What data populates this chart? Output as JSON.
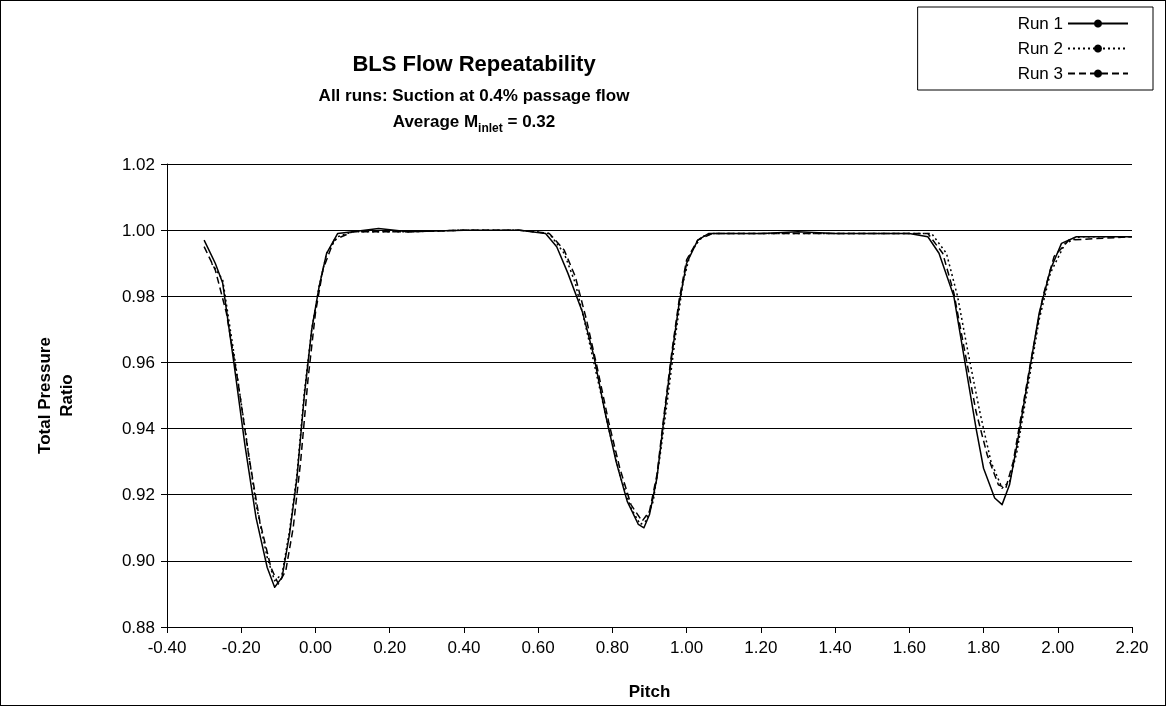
{
  "chart_data": {
    "type": "line",
    "title": "BLS Flow Repeatability",
    "subtitle": "All runs: Suction at 0.4% passage flow\nAverage M$_{inlet}$ = 0.32",
    "xlabel": "Pitch",
    "ylabel": "Total Pressure\nRatio",
    "xlim": [
      -0.4,
      2.2
    ],
    "xticks": [
      {
        "value": -0.4,
        "label": "-0.40"
      },
      {
        "value": -0.2,
        "label": "-0.20"
      },
      {
        "value": 0,
        "label": "0.00"
      },
      {
        "value": 0.2,
        "label": "0.20"
      },
      {
        "value": 0.4,
        "label": "0.40"
      },
      {
        "value": 0.6,
        "label": "0.60"
      },
      {
        "value": 0.8,
        "label": "0.80"
      },
      {
        "value": 1,
        "label": "1.00"
      },
      {
        "value": 1.2,
        "label": "1.20"
      },
      {
        "value": 1.4,
        "label": "1.40"
      },
      {
        "value": 1.6,
        "label": "1.60"
      },
      {
        "value": 1.8,
        "label": "1.80"
      },
      {
        "value": 2,
        "label": "2.00"
      },
      {
        "value": 2.2,
        "label": "2.20"
      }
    ],
    "ylim": [
      0.88,
      1.02
    ],
    "yticks": [
      {
        "value": 0.88,
        "label": "0.88"
      },
      {
        "value": 0.9,
        "label": "0.90"
      },
      {
        "value": 0.92,
        "label": "0.92"
      },
      {
        "value": 0.94,
        "label": "0.94"
      },
      {
        "value": 0.96,
        "label": "0.96"
      },
      {
        "value": 0.98,
        "label": "0.98"
      },
      {
        "value": 1,
        "label": "1.00"
      },
      {
        "value": 1.02,
        "label": "1.02"
      }
    ],
    "grid": "y",
    "legend": "top right",
    "marker": "none",
    "series": [
      {
        "name": "Run 1",
        "color": "#000000",
        "line_style": "solid",
        "x": [
          -0.3,
          -0.27,
          -0.25,
          -0.22,
          -0.19,
          -0.16,
          -0.13,
          -0.11,
          -0.09,
          -0.07,
          -0.05,
          -0.03,
          -0.01,
          0.01,
          0.03,
          0.06,
          0.1,
          0.17,
          0.25,
          0.4,
          0.55,
          0.62,
          0.65,
          0.68,
          0.72,
          0.75,
          0.78,
          0.81,
          0.84,
          0.87,
          0.885,
          0.9,
          0.92,
          0.94,
          0.96,
          0.98,
          1,
          1.03,
          1.06,
          1.2,
          1.3,
          1.4,
          1.6,
          1.65,
          1.68,
          1.72,
          1.75,
          1.78,
          1.8,
          1.83,
          1.85,
          1.87,
          1.89,
          1.92,
          1.95,
          1.98,
          2.01,
          2.05,
          2.2
        ],
        "values": [
          0.997,
          0.99,
          0.984,
          0.96,
          0.935,
          0.913,
          0.898,
          0.892,
          0.895,
          0.908,
          0.925,
          0.95,
          0.97,
          0.983,
          0.993,
          0.999,
          0.9995,
          1.0005,
          0.9995,
          1,
          1,
          0.999,
          0.995,
          0.987,
          0.975,
          0.962,
          0.945,
          0.93,
          0.918,
          0.911,
          0.91,
          0.914,
          0.925,
          0.944,
          0.962,
          0.978,
          0.99,
          0.997,
          0.999,
          0.999,
          0.9995,
          0.999,
          0.999,
          0.998,
          0.993,
          0.98,
          0.96,
          0.94,
          0.928,
          0.919,
          0.917,
          0.923,
          0.935,
          0.955,
          0.975,
          0.988,
          0.996,
          0.998,
          0.998
        ]
      },
      {
        "name": "Run 2",
        "color": "#000000",
        "line_style": "dotted",
        "x": [
          -0.28,
          -0.25,
          -0.22,
          -0.19,
          -0.16,
          -0.13,
          -0.11,
          -0.09,
          -0.07,
          -0.05,
          -0.03,
          -0.01,
          0.01,
          0.03,
          0.06,
          0.1,
          0.25,
          0.4,
          0.55,
          0.63,
          0.67,
          0.7,
          0.73,
          0.76,
          0.79,
          0.82,
          0.85,
          0.875,
          0.89,
          0.91,
          0.93,
          0.95,
          0.97,
          0.99,
          1.01,
          1.04,
          1.07,
          1.3,
          1.5,
          1.66,
          1.7,
          1.73,
          1.76,
          1.79,
          1.82,
          1.85,
          1.87,
          1.89,
          1.92,
          1.95,
          1.98,
          2.02,
          2.06,
          2.2
        ],
        "values": [
          0.99,
          0.985,
          0.963,
          0.94,
          0.917,
          0.901,
          0.894,
          0.896,
          0.909,
          0.926,
          0.951,
          0.97,
          0.983,
          0.993,
          0.998,
          0.9995,
          0.9995,
          1,
          1,
          0.999,
          0.993,
          0.984,
          0.97,
          0.955,
          0.94,
          0.926,
          0.916,
          0.911,
          0.912,
          0.918,
          0.933,
          0.95,
          0.968,
          0.984,
          0.993,
          0.998,
          0.999,
          0.999,
          0.999,
          0.999,
          0.993,
          0.98,
          0.962,
          0.945,
          0.93,
          0.922,
          0.924,
          0.933,
          0.953,
          0.973,
          0.987,
          0.996,
          0.998,
          0.998
        ]
      },
      {
        "name": "Run 3",
        "color": "#000000",
        "line_style": "dashed",
        "x": [
          -0.3,
          -0.27,
          -0.24,
          -0.21,
          -0.18,
          -0.15,
          -0.12,
          -0.1,
          -0.08,
          -0.06,
          -0.04,
          -0.02,
          0,
          0.02,
          0.05,
          0.1,
          0.25,
          0.4,
          0.55,
          0.63,
          0.67,
          0.7,
          0.73,
          0.76,
          0.79,
          0.82,
          0.85,
          0.88,
          0.9,
          0.92,
          0.94,
          0.96,
          0.98,
          1,
          1.03,
          1.07,
          1.3,
          1.5,
          1.65,
          1.69,
          1.72,
          1.75,
          1.78,
          1.81,
          1.84,
          1.86,
          1.88,
          1.9,
          1.93,
          1.96,
          1.99,
          2.03,
          2.2
        ],
        "values": [
          0.995,
          0.988,
          0.975,
          0.955,
          0.932,
          0.912,
          0.898,
          0.893,
          0.897,
          0.91,
          0.93,
          0.955,
          0.975,
          0.988,
          0.997,
          0.9995,
          0.9995,
          1,
          1,
          0.999,
          0.994,
          0.986,
          0.973,
          0.958,
          0.942,
          0.928,
          0.917,
          0.912,
          0.915,
          0.926,
          0.945,
          0.963,
          0.979,
          0.991,
          0.997,
          0.999,
          0.999,
          0.999,
          0.999,
          0.993,
          0.981,
          0.963,
          0.945,
          0.932,
          0.923,
          0.922,
          0.93,
          0.943,
          0.962,
          0.98,
          0.992,
          0.997,
          0.998
        ]
      }
    ]
  }
}
